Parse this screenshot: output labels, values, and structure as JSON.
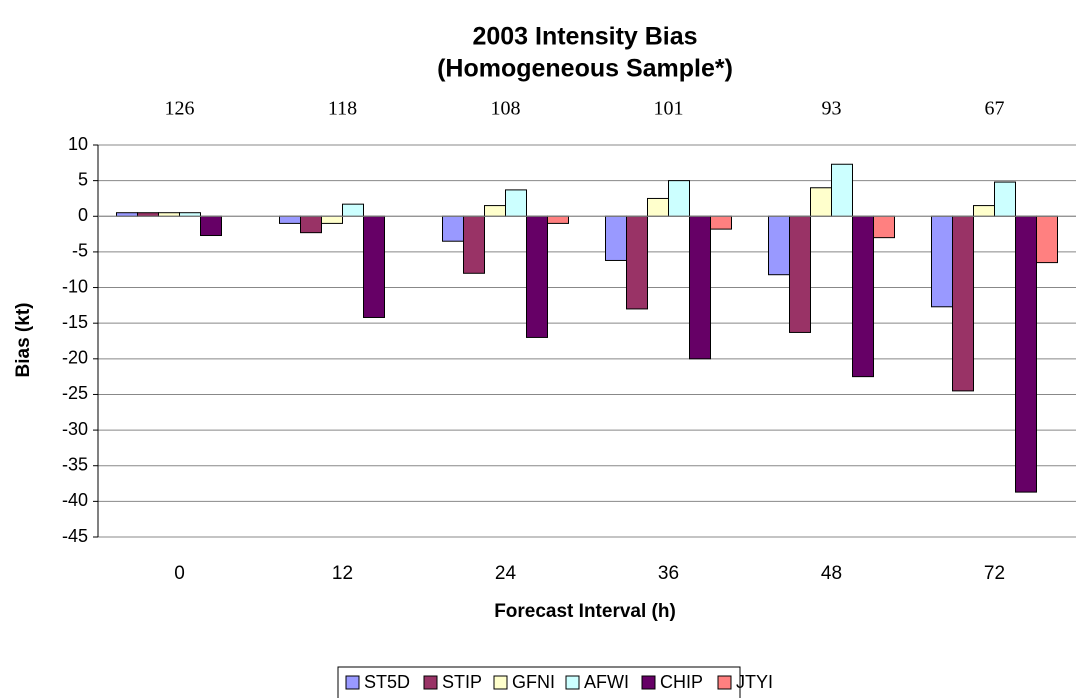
{
  "chart_data": {
    "type": "bar",
    "title": "2003 Intensity Bias",
    "subtitle": "(Homogeneous Sample*)",
    "x_label": "Forecast Interval (h)",
    "y_label": "Bias (kt)",
    "categories": [
      "0",
      "12",
      "24",
      "36",
      "48",
      "72"
    ],
    "sample_sizes": [
      126,
      118,
      108,
      101,
      93,
      67
    ],
    "series": [
      {
        "name": "ST5D",
        "color": "#9999ff",
        "values": [
          0.5,
          -1.0,
          -3.5,
          -6.2,
          -8.2,
          -12.7
        ]
      },
      {
        "name": "STIP",
        "color": "#993366",
        "values": [
          0.5,
          -2.3,
          -8.0,
          -13.0,
          -16.3,
          -24.5
        ]
      },
      {
        "name": "GFNI",
        "color": "#ffffcc",
        "values": [
          0.5,
          -1.0,
          1.5,
          2.5,
          4.0,
          1.5
        ]
      },
      {
        "name": "AFWI",
        "color": "#ccffff",
        "values": [
          0.5,
          1.7,
          3.7,
          5.0,
          7.3,
          4.8
        ]
      },
      {
        "name": "CHIP",
        "color": "#660066",
        "values": [
          -2.7,
          -14.2,
          -17.0,
          -20.0,
          -22.5,
          -38.7
        ]
      },
      {
        "name": "JTYI",
        "color": "#ff8080",
        "values": [
          0,
          0,
          -1.0,
          -1.8,
          -3.0,
          -6.5
        ]
      }
    ],
    "ylim": [
      -45,
      10
    ],
    "yticks": [
      10,
      5,
      0,
      -5,
      -10,
      -15,
      -20,
      -25,
      -30,
      -35,
      -40,
      -45
    ],
    "grid": true,
    "legend": "bottom"
  }
}
